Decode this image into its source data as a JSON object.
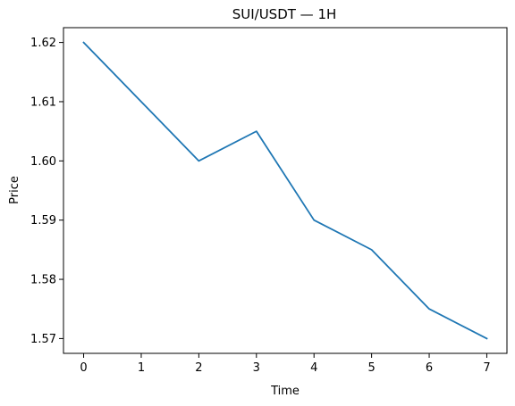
{
  "chart_data": {
    "type": "line",
    "title": "SUI/USDT — 1H",
    "xlabel": "Time",
    "ylabel": "Price",
    "x": [
      0,
      1,
      2,
      3,
      4,
      5,
      6,
      7
    ],
    "series": [
      {
        "values": [
          1.62,
          1.61,
          1.6,
          1.605,
          1.59,
          1.585,
          1.575,
          1.57
        ],
        "color": "#1f77b4"
      }
    ],
    "xticks": [
      0,
      1,
      2,
      3,
      4,
      5,
      6,
      7
    ],
    "xtick_labels": [
      "0",
      "1",
      "2",
      "3",
      "4",
      "5",
      "6",
      "7"
    ],
    "yticks": [
      1.57,
      1.58,
      1.59,
      1.6,
      1.61,
      1.62
    ],
    "ytick_labels": [
      "1.57",
      "1.58",
      "1.59",
      "1.60",
      "1.61",
      "1.62"
    ],
    "xlim": [
      -0.35,
      7.35
    ],
    "ylim": [
      1.5675,
      1.6225
    ],
    "grid": false,
    "legend": "none"
  }
}
